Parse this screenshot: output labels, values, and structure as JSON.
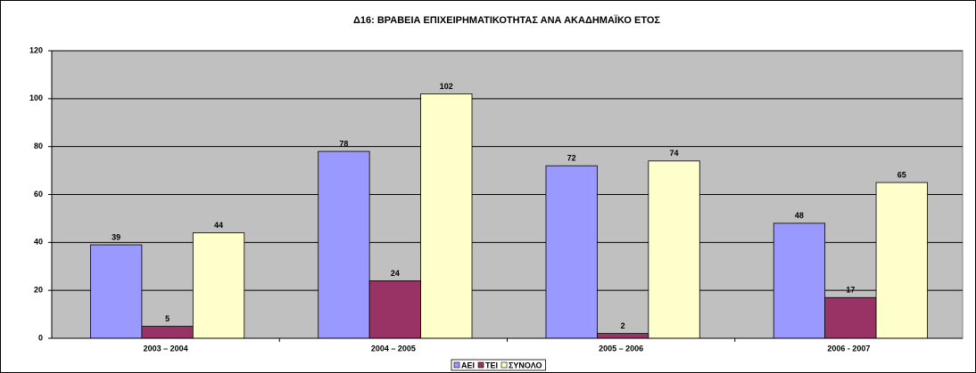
{
  "chart_data": {
    "type": "bar",
    "title": "Δ16: ΒΡΑΒΕΙΑ ΕΠΙΧΕΙΡΗΜΑΤΙΚΟΤΗΤΑΣ ΑΝΑ ΑΚΑΔΗΜΑΪΚΟ ΕΤΟΣ",
    "categories": [
      "2003 – 2004",
      "2004 – 2005",
      "2005 – 2006",
      "2006 - 2007"
    ],
    "series": [
      {
        "name": "ΑΕΙ",
        "color": "#9999ff",
        "values": [
          39,
          78,
          72,
          48
        ]
      },
      {
        "name": "ΤΕΙ",
        "color": "#993366",
        "values": [
          5,
          24,
          2,
          17
        ]
      },
      {
        "name": "ΣΥΝΟΛΟ",
        "color": "#ffffcc",
        "values": [
          44,
          102,
          74,
          65
        ]
      }
    ],
    "ylim": [
      0,
      120
    ],
    "yticks": [
      0,
      20,
      40,
      60,
      80,
      100,
      120
    ],
    "grid": true,
    "plot_color": "#c0c0c0",
    "legend": "bottom"
  }
}
